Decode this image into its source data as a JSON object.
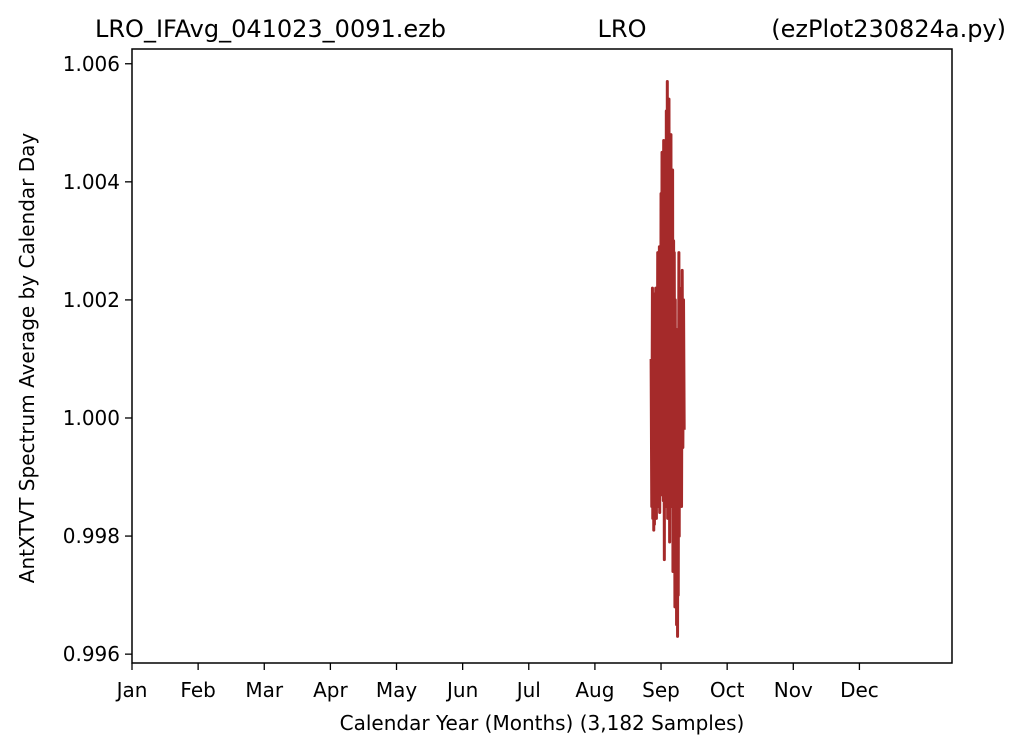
{
  "chart_data": {
    "type": "line",
    "title_left": "LRO_IFAvg_041023_0091.ezb",
    "title_center": "LRO",
    "title_right": "(ezPlot230824a.py)",
    "xlabel": "Calendar Year (Months) (3,182 Samples)",
    "ylabel": "AntXTVT Spectrum Average by Calendar Day",
    "xlim": [
      0,
      12.4
    ],
    "ylim": [
      0.99585,
      1.00625
    ],
    "x_ticks": [
      {
        "value": 0,
        "label": "Jan"
      },
      {
        "value": 1,
        "label": "Feb"
      },
      {
        "value": 2,
        "label": "Mar"
      },
      {
        "value": 3,
        "label": "Apr"
      },
      {
        "value": 4,
        "label": "May"
      },
      {
        "value": 5,
        "label": "Jun"
      },
      {
        "value": 6,
        "label": "Jul"
      },
      {
        "value": 7,
        "label": "Aug"
      },
      {
        "value": 8,
        "label": "Sep"
      },
      {
        "value": 9,
        "label": "Oct"
      },
      {
        "value": 10,
        "label": "Nov"
      },
      {
        "value": 11,
        "label": "Dec"
      }
    ],
    "y_ticks": [
      {
        "value": 0.996,
        "label": "0.996"
      },
      {
        "value": 0.998,
        "label": "0.998"
      },
      {
        "value": 1.0,
        "label": "1.000"
      },
      {
        "value": 1.002,
        "label": "1.002"
      },
      {
        "value": 1.004,
        "label": "1.004"
      },
      {
        "value": 1.006,
        "label": "1.006"
      }
    ],
    "grid": false,
    "line_color": "#a52a2a",
    "series": [
      {
        "x": [
          7.85,
          7.86,
          7.87,
          7.875,
          7.88,
          7.89,
          7.895,
          7.9,
          7.91,
          7.915,
          7.92,
          7.93,
          7.935,
          7.94,
          7.95,
          7.955,
          7.96,
          7.97,
          7.975,
          7.98,
          7.99,
          7.995,
          8.0,
          8.01,
          8.015,
          8.02,
          8.03,
          8.035,
          8.04,
          8.05,
          8.055,
          8.06,
          8.07,
          8.075,
          8.08,
          8.09,
          8.095,
          8.1,
          8.11,
          8.115,
          8.12,
          8.13,
          8.135,
          8.14,
          8.15,
          8.155,
          8.16,
          8.17,
          8.175,
          8.18,
          8.19,
          8.195,
          8.2,
          8.21,
          8.215,
          8.22,
          8.23,
          8.235,
          8.24,
          8.25,
          8.255,
          8.26,
          8.27,
          8.275,
          8.28,
          8.29,
          8.3,
          8.31,
          8.32,
          8.33,
          8.34,
          8.35
        ],
        "y": [
          1.001,
          0.9985,
          1.0022,
          0.9983,
          1.0018,
          0.9981,
          1.0021,
          0.9982,
          1.0015,
          0.9984,
          1.0022,
          0.9983,
          1.0012,
          0.9986,
          1.0028,
          0.9985,
          1.0024,
          0.9988,
          1.0029,
          0.9984,
          1.0026,
          0.999,
          1.0038,
          0.9987,
          1.0045,
          0.999,
          1.0035,
          0.9986,
          1.0047,
          0.9976,
          1.003,
          0.9988,
          1.0042,
          0.9985,
          1.0052,
          0.999,
          1.0057,
          0.9983,
          1.005,
          0.9988,
          1.0054,
          0.9979,
          1.0045,
          0.9987,
          1.0048,
          0.9985,
          1.0035,
          0.999,
          1.0042,
          0.9974,
          1.003,
          0.9981,
          1.0028,
          0.9968,
          1.002,
          0.9976,
          1.0015,
          0.9965,
          1.0012,
          0.9963,
          1.0008,
          0.997,
          1.0028,
          0.998,
          1.0022,
          0.999,
          1.0018,
          0.9985,
          1.0025,
          0.9995,
          1.002,
          0.9998
        ]
      }
    ]
  }
}
